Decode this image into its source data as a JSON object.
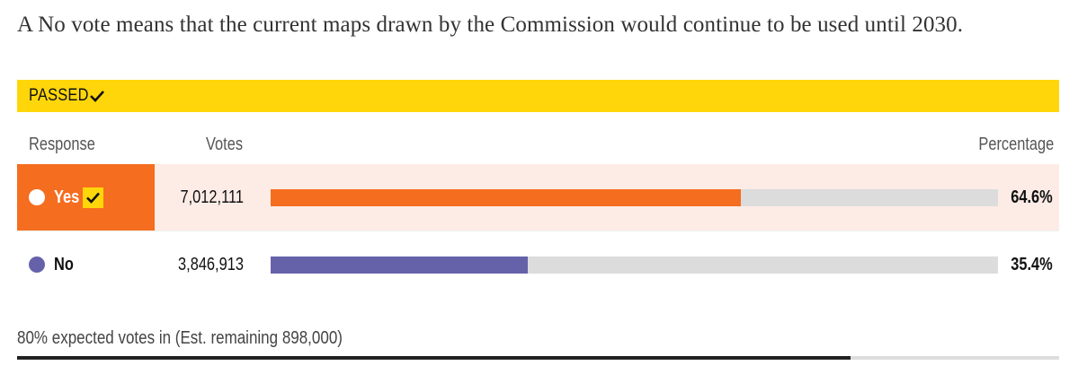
{
  "description": "A No vote means that the current maps drawn by the Commission would continue to be used until 2030.",
  "status": {
    "label": "PASSED",
    "icon": "checkmark-icon",
    "color": "#ffd60a"
  },
  "headers": {
    "response": "Response",
    "votes": "Votes",
    "percentage": "Percentage"
  },
  "results": [
    {
      "name": "Yes",
      "votes": "7,012,111",
      "percentage": "64.6%",
      "share": 64.6,
      "color": "#f56d1f",
      "winner": true
    },
    {
      "name": "No",
      "votes": "3,846,913",
      "percentage": "35.4%",
      "share": 35.4,
      "color": "#6662aa",
      "winner": false
    }
  ],
  "footer": {
    "text": "80% expected votes in (Est. remaining 898,000)",
    "reported_fraction": 0.8
  }
}
